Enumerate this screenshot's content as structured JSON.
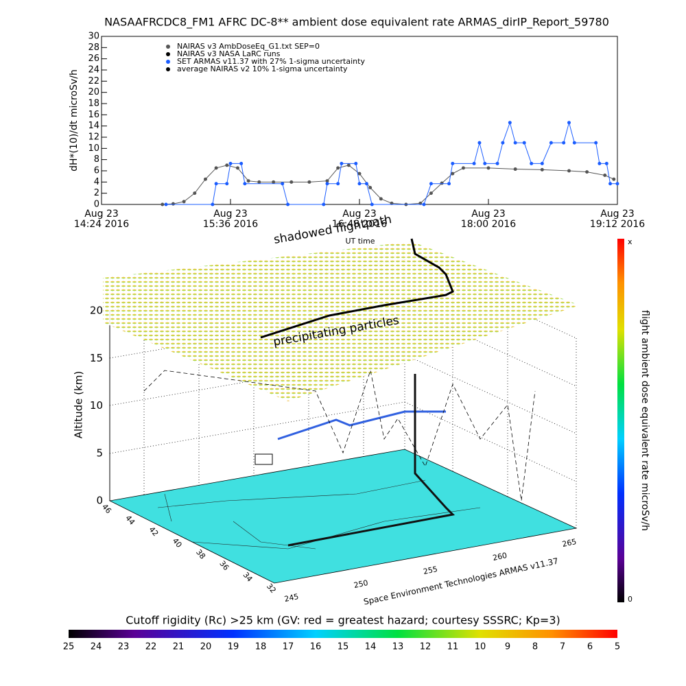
{
  "chart_data": [
    {
      "type": "line",
      "title": "NASAAFRCDC8_FM1 AFRC DC-8** ambient dose equivalent rate ARMAS_dirIP_Report_59780",
      "ylabel": "dH*(10)/dt microSv/h",
      "xlabel": "UT time",
      "xlim": [
        "14:24",
        "19:12"
      ],
      "xticks": [
        {
          "value": "14:24",
          "label": [
            "Aug 23",
            "14:24 2016"
          ]
        },
        {
          "value": "15:36",
          "label": [
            "Aug 23",
            "15:36 2016"
          ]
        },
        {
          "value": "16:48",
          "label": [
            "Aug 23",
            "16:48 2016"
          ]
        },
        {
          "value": "18:00",
          "label": [
            "Aug 23",
            "18:00 2016"
          ]
        },
        {
          "value": "19:12",
          "label": [
            "Aug 23",
            "19:12 2016"
          ]
        }
      ],
      "ylim": [
        0,
        30
      ],
      "yticks": [
        0,
        2,
        4,
        6,
        8,
        10,
        12,
        14,
        16,
        18,
        20,
        22,
        24,
        26,
        28,
        30
      ],
      "series": [
        {
          "name": "NAIRAS v3 AmbDoseEq_G1.txt SEP=0",
          "color": "#555555",
          "x": [
            "14:58",
            "15:04",
            "15:10",
            "15:16",
            "15:22",
            "15:28",
            "15:34",
            "15:40",
            "15:46",
            "15:52",
            "16:00",
            "16:10",
            "16:20",
            "16:30",
            "16:36",
            "16:42",
            "16:48",
            "16:54",
            "17:00",
            "17:06",
            "17:14",
            "17:22",
            "17:28",
            "17:34",
            "17:40",
            "17:46",
            "18:00",
            "18:15",
            "18:30",
            "18:45",
            "18:55",
            "19:05",
            "19:10"
          ],
          "values": [
            0,
            0.1,
            0.5,
            2,
            4.5,
            6.5,
            7,
            6.5,
            4.2,
            4,
            4,
            4,
            4,
            4.2,
            6.5,
            7,
            5.5,
            3,
            1,
            0.2,
            0,
            0.2,
            2,
            3.8,
            5.5,
            6.5,
            6.5,
            6.3,
            6.2,
            6,
            5.8,
            5.2,
            4.5
          ]
        },
        {
          "name": "NAIRAS v3 NASA LaRC runs",
          "color": "#000000",
          "x": [],
          "values": []
        },
        {
          "name": "SET ARMAS v11.37 with 27% 1-sigma uncertainty",
          "color": "#1a5cff",
          "x": [
            "15:00",
            "15:26",
            "15:28",
            "15:34",
            "15:36",
            "15:42",
            "15:44",
            "16:05",
            "16:08",
            "16:28",
            "16:30",
            "16:36",
            "16:38",
            "16:46",
            "16:48",
            "16:52",
            "16:55",
            "17:24",
            "17:28",
            "17:38",
            "17:40",
            "17:52",
            "17:55",
            "17:58",
            "18:05",
            "18:08",
            "18:12",
            "18:15",
            "18:20",
            "18:24",
            "18:30",
            "18:35",
            "18:42",
            "18:45",
            "18:48",
            "19:00",
            "19:02",
            "19:06",
            "19:08",
            "19:12"
          ],
          "values": [
            0,
            0,
            3.7,
            3.7,
            7.3,
            7.3,
            3.7,
            3.7,
            0,
            0,
            3.7,
            3.7,
            7.3,
            7.3,
            3.7,
            3.7,
            0,
            0,
            3.7,
            3.7,
            7.3,
            7.3,
            11,
            7.3,
            7.3,
            11,
            14.6,
            11,
            11,
            7.3,
            7.3,
            11,
            11,
            14.6,
            11,
            11,
            7.3,
            7.3,
            3.7,
            3.7
          ]
        },
        {
          "name": "average NAIRAS v2 10% 1-sigma uncertainty",
          "color": "#000000",
          "x": [],
          "values": []
        }
      ]
    },
    {
      "type": "surface3d",
      "zlabel": "Altitude (km)",
      "zticks": [
        0,
        5,
        10,
        15,
        20
      ],
      "latticks": [
        46,
        44,
        42,
        40,
        38,
        36,
        34,
        32
      ],
      "lonticks": [
        245,
        250,
        255,
        260,
        265
      ],
      "annotations": [
        "shadowed flightpath",
        "precipitating particles"
      ],
      "source": "Space Environment Technologies ARMAS v11.37"
    },
    {
      "type": "colorbar",
      "orientation": "vertical",
      "label": "flight ambient dose equivalent rate microSv/h",
      "top_label": "x",
      "bottom_label": 0
    },
    {
      "type": "colorbar",
      "orientation": "horizontal",
      "label": "Cutoff rigidity (Rc) >25 km (GV: red = greatest hazard; courtesy SSSRC; Kp=3)",
      "ticks": [
        25,
        24,
        23,
        22,
        21,
        20,
        19,
        18,
        17,
        16,
        15,
        14,
        13,
        12,
        11,
        10,
        9,
        8,
        7,
        6,
        5
      ]
    }
  ]
}
